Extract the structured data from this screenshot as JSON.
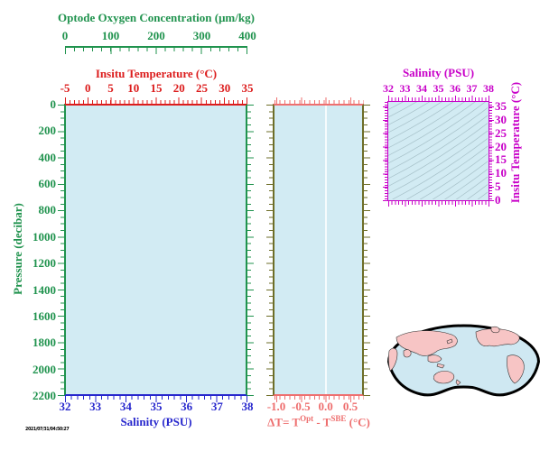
{
  "colors": {
    "green": "#20934e",
    "red": "#dc1c1c",
    "blue": "#2727cd",
    "magenta": "#c800c8",
    "salmon": "#ee6f6f",
    "olive": "#6e6e28",
    "panel_fill": "#d2ebf3",
    "contour": "#a6c0c8",
    "land": "#f7c5c5",
    "ocean": "#cfe8f2"
  },
  "profile_panel": {
    "oxygen_axis": {
      "title": "Optode Oxygen Concentration (μm/kg)",
      "tick_labels": [
        "0",
        "100",
        "200",
        "300",
        "400"
      ]
    },
    "temperature_axis": {
      "title": "Insitu Temperature (°C)",
      "tick_labels": [
        "-5",
        "0",
        "5",
        "10",
        "15",
        "20",
        "25",
        "30",
        "35"
      ]
    },
    "pressure_axis": {
      "title": "Pressure (decibar)",
      "tick_labels": [
        "0",
        "200",
        "400",
        "600",
        "800",
        "1000",
        "1200",
        "1400",
        "1600",
        "1800",
        "2000",
        "2200"
      ]
    },
    "salinity_axis": {
      "title": "Salinity (PSU)",
      "tick_labels": [
        "32",
        "33",
        "34",
        "35",
        "36",
        "37",
        "38"
      ]
    }
  },
  "delta_t_panel": {
    "title_prefix": "ΔT= T",
    "title_sup1": "Opt",
    "title_mid": " - T",
    "title_sup2": "SBE",
    "title_suffix": " (°C)",
    "tick_labels": [
      "-1.0",
      "-0.5",
      "0.0",
      "0.5"
    ]
  },
  "ts_panel": {
    "salinity_axis": {
      "title": "Salinity (PSU)",
      "tick_labels": [
        "32",
        "33",
        "34",
        "35",
        "36",
        "37",
        "38"
      ]
    },
    "temperature_axis": {
      "title": "Insitu Temperature (°C)",
      "tick_labels": [
        "35",
        "30",
        "25",
        "20",
        "15",
        "10",
        "5",
        "0"
      ]
    }
  },
  "map": {
    "description": "Pacific-centered world map, pink land on light-blue ocean, thick black outline"
  },
  "stamp": "2021/07/31/04:50:27",
  "chart_data": [
    {
      "type": "line",
      "title": "Profile panel (no data plotted - empty axes frame)",
      "x_axes": [
        {
          "label": "Optode Oxygen Concentration (μm/kg)",
          "range": [
            0,
            400
          ],
          "major_tick": 100,
          "minor_tick": 20
        },
        {
          "label": "Insitu Temperature (°C)",
          "range": [
            -5,
            35
          ],
          "major_tick": 5,
          "minor_tick": 1
        },
        {
          "label": "Salinity (PSU)",
          "range": [
            32,
            38
          ],
          "major_tick": 1,
          "minor_tick": 0.2
        }
      ],
      "ylabel": "Pressure (decibar)",
      "ylim": [
        2200,
        0
      ],
      "y_major_tick": 200,
      "grid": false,
      "series": []
    },
    {
      "type": "line",
      "title": "Temperature difference panel (no data plotted)",
      "xlabel": "ΔT = T^Opt - T^SBE (°C)",
      "xlim": [
        -1.05,
        0.76
      ],
      "x_major_tick": 0.5,
      "ylabel": "Pressure (decibar)",
      "ylim": [
        2200,
        0
      ],
      "reference_line_x": 0.0,
      "series": []
    },
    {
      "type": "line",
      "title": "T-S diagram (isopycnal contour background only, no data points)",
      "xlabel": "Salinity (PSU)",
      "xlim": [
        32,
        38
      ],
      "ylabel": "Insitu Temperature (°C)",
      "ylim": [
        0,
        35
      ],
      "background_contours": "sigma-t isopycnals, light gray diagonal curves",
      "series": []
    }
  ]
}
